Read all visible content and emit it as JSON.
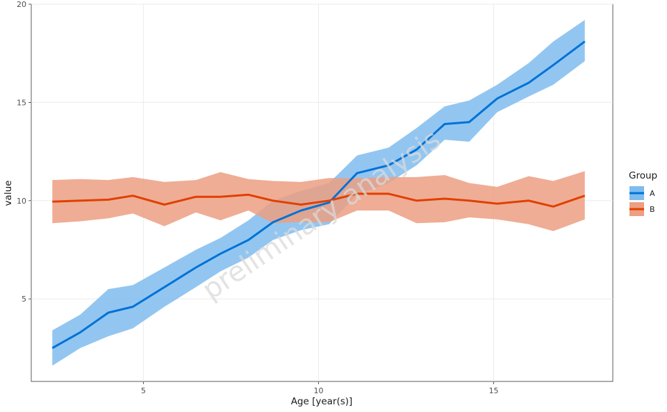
{
  "chart_data": {
    "type": "line",
    "xlabel": "Age [year(s)]",
    "ylabel": "value",
    "xlim": [
      1.8,
      18.4
    ],
    "ylim": [
      0.8,
      20
    ],
    "xticks": [
      5,
      10,
      15
    ],
    "yticks": [
      5,
      10,
      15,
      20
    ],
    "grid": true,
    "legend_title": "Group",
    "legend_position": "right",
    "watermark": "preliminary analysis",
    "x": [
      2.4,
      3.2,
      4.0,
      4.7,
      5.6,
      6.5,
      7.2,
      8.0,
      8.7,
      9.5,
      10.3,
      11.1,
      12.0,
      12.8,
      13.6,
      14.3,
      15.1,
      16.0,
      16.7,
      17.6
    ],
    "series": [
      {
        "name": "A",
        "color": "#0072d6",
        "fill": "#7fbcee",
        "values": [
          2.5,
          3.3,
          4.3,
          4.6,
          5.6,
          6.6,
          7.3,
          8.0,
          8.9,
          9.5,
          9.9,
          11.4,
          11.8,
          12.6,
          13.9,
          14.0,
          15.2,
          16.0,
          16.9,
          18.1
        ],
        "lower": [
          1.6,
          2.5,
          3.1,
          3.5,
          4.6,
          5.6,
          6.4,
          7.1,
          8.0,
          8.5,
          8.8,
          10.3,
          10.9,
          11.8,
          13.1,
          13.0,
          14.5,
          15.3,
          15.9,
          17.1
        ],
        "upper": [
          3.4,
          4.2,
          5.5,
          5.7,
          6.6,
          7.5,
          8.1,
          9.0,
          10.0,
          10.5,
          10.9,
          12.3,
          12.7,
          13.7,
          14.8,
          15.1,
          15.9,
          17.0,
          18.1,
          19.2
        ]
      },
      {
        "name": "B",
        "color": "#e04000",
        "fill": "#ec9f82",
        "values": [
          9.95,
          10.0,
          10.05,
          10.25,
          9.8,
          10.2,
          10.2,
          10.3,
          10.0,
          9.8,
          10.0,
          10.35,
          10.35,
          10.0,
          10.1,
          10.0,
          9.85,
          10.0,
          9.7,
          10.25
        ],
        "lower": [
          8.85,
          8.95,
          9.1,
          9.35,
          8.7,
          9.4,
          9.0,
          9.5,
          8.85,
          8.9,
          8.9,
          9.5,
          9.5,
          8.85,
          8.9,
          9.15,
          9.05,
          8.8,
          8.45,
          9.05
        ],
        "upper": [
          11.05,
          11.1,
          11.05,
          11.2,
          10.95,
          11.05,
          11.45,
          11.1,
          11.0,
          10.95,
          11.15,
          11.15,
          11.2,
          11.2,
          11.3,
          10.9,
          10.7,
          11.25,
          11.0,
          11.5
        ]
      }
    ]
  }
}
